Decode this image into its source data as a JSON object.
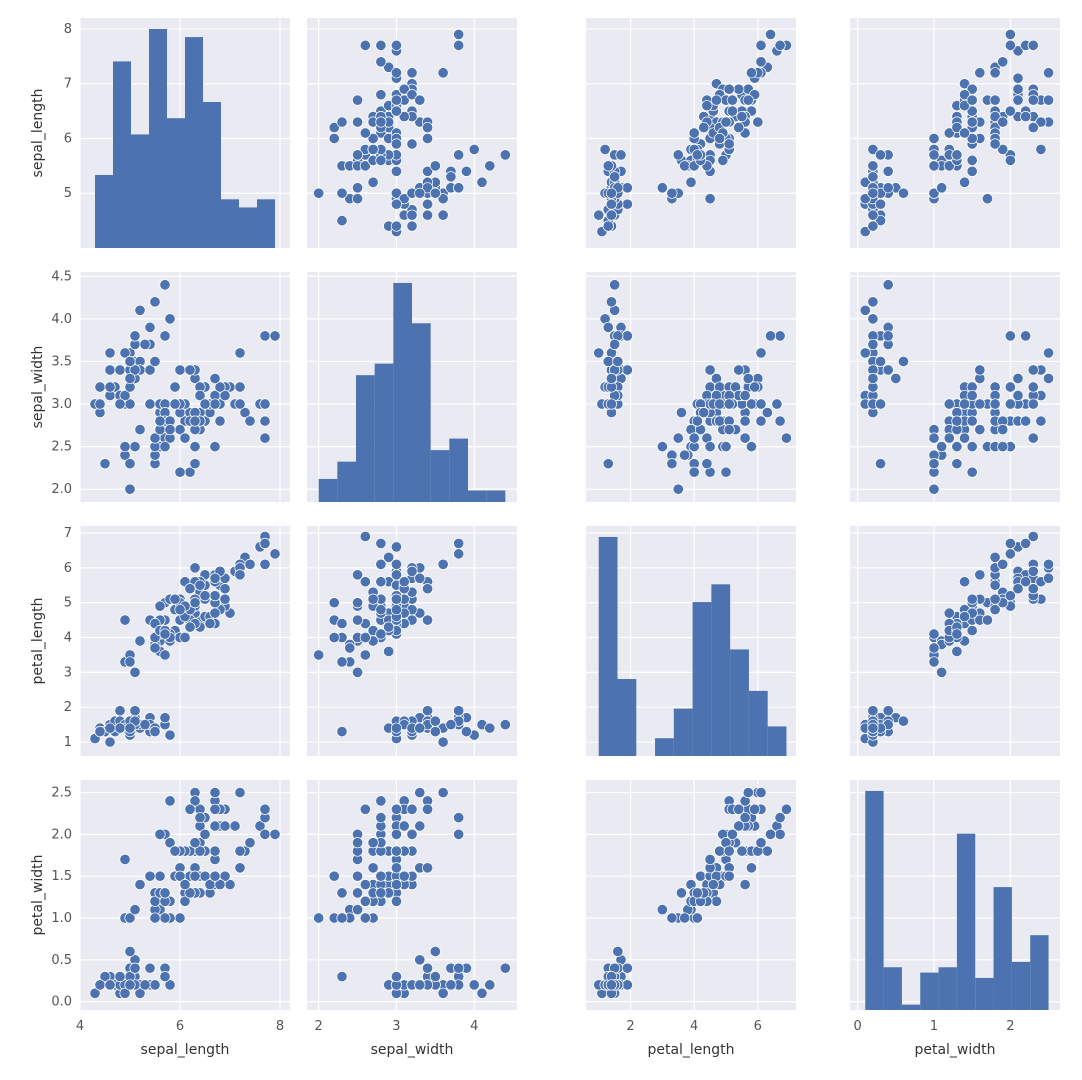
{
  "chart_data": {
    "type": "scatter",
    "kind": "pairplot",
    "variables": [
      "sepal_length",
      "sepal_width",
      "petal_length",
      "petal_width"
    ],
    "color": "#4C72B0",
    "background": "#EAEAF2",
    "grid": true,
    "legend": "none",
    "axes": {
      "sepal_length": {
        "range": [
          4.0,
          8.2
        ],
        "ticks": [
          4,
          6,
          8
        ],
        "ticks_row": [
          5,
          6,
          7,
          8
        ]
      },
      "sepal_width": {
        "range": [
          1.85,
          4.55
        ],
        "ticks": [
          2,
          3,
          4
        ],
        "ticks_row": [
          "2.0",
          "2.5",
          "3.0",
          "3.5",
          "4.0",
          "4.5"
        ]
      },
      "petal_length": {
        "range": [
          0.6,
          7.2
        ],
        "ticks": [
          2,
          4,
          6
        ],
        "ticks_row": [
          1,
          2,
          3,
          4,
          5,
          6,
          7
        ]
      },
      "petal_width": {
        "range": [
          -0.1,
          2.65
        ],
        "ticks": [
          0,
          1,
          2
        ],
        "ticks_row": [
          "0.0",
          "0.5",
          "1.0",
          "1.5",
          "2.0",
          "2.5"
        ]
      }
    },
    "histograms": {
      "sepal_length": {
        "edges": [
          4.3,
          4.66,
          5.02,
          5.38,
          5.74,
          6.1,
          6.46,
          6.82,
          7.18,
          7.54,
          7.9
        ],
        "counts": [
          9,
          23,
          14,
          27,
          16,
          26,
          18,
          6,
          5,
          6
        ]
      },
      "sepal_width": {
        "edges": [
          2.0,
          2.24,
          2.48,
          2.72,
          2.96,
          3.2,
          3.44,
          3.68,
          3.92,
          4.16,
          4.4
        ],
        "counts": [
          4,
          7,
          22,
          24,
          38,
          31,
          9,
          11,
          2,
          2
        ]
      },
      "petal_length": {
        "edges": [
          1.0,
          1.59,
          2.18,
          2.77,
          3.36,
          3.95,
          4.54,
          5.13,
          5.72,
          6.31,
          6.9
        ],
        "counts": [
          37,
          13,
          0,
          3,
          8,
          26,
          29,
          18,
          11,
          5
        ]
      },
      "petal_width": {
        "edges": [
          0.1,
          0.34,
          0.58,
          0.82,
          1.06,
          1.3,
          1.54,
          1.78,
          2.02,
          2.26,
          2.5
        ],
        "counts": [
          41,
          8,
          1,
          7,
          8,
          33,
          6,
          23,
          9,
          14
        ]
      }
    },
    "observations": [
      [
        5.1,
        3.5,
        1.4,
        0.2
      ],
      [
        4.9,
        3.0,
        1.4,
        0.2
      ],
      [
        4.7,
        3.2,
        1.3,
        0.2
      ],
      [
        4.6,
        3.1,
        1.5,
        0.2
      ],
      [
        5.0,
        3.6,
        1.4,
        0.2
      ],
      [
        5.4,
        3.9,
        1.7,
        0.4
      ],
      [
        4.6,
        3.4,
        1.4,
        0.3
      ],
      [
        5.0,
        3.4,
        1.5,
        0.2
      ],
      [
        4.4,
        2.9,
        1.4,
        0.2
      ],
      [
        4.9,
        3.1,
        1.5,
        0.1
      ],
      [
        5.4,
        3.7,
        1.5,
        0.2
      ],
      [
        4.8,
        3.4,
        1.6,
        0.2
      ],
      [
        4.8,
        3.0,
        1.4,
        0.1
      ],
      [
        4.3,
        3.0,
        1.1,
        0.1
      ],
      [
        5.8,
        4.0,
        1.2,
        0.2
      ],
      [
        5.7,
        4.4,
        1.5,
        0.4
      ],
      [
        5.4,
        3.9,
        1.3,
        0.4
      ],
      [
        5.1,
        3.5,
        1.4,
        0.3
      ],
      [
        5.7,
        3.8,
        1.7,
        0.3
      ],
      [
        5.1,
        3.8,
        1.5,
        0.3
      ],
      [
        5.4,
        3.4,
        1.7,
        0.2
      ],
      [
        5.1,
        3.7,
        1.5,
        0.4
      ],
      [
        4.6,
        3.6,
        1.0,
        0.2
      ],
      [
        5.1,
        3.3,
        1.7,
        0.5
      ],
      [
        4.8,
        3.4,
        1.9,
        0.2
      ],
      [
        5.0,
        3.0,
        1.6,
        0.2
      ],
      [
        5.0,
        3.4,
        1.6,
        0.4
      ],
      [
        5.2,
        3.5,
        1.5,
        0.2
      ],
      [
        5.2,
        3.4,
        1.4,
        0.2
      ],
      [
        4.7,
        3.2,
        1.6,
        0.2
      ],
      [
        4.8,
        3.1,
        1.6,
        0.2
      ],
      [
        5.4,
        3.4,
        1.5,
        0.4
      ],
      [
        5.2,
        4.1,
        1.5,
        0.1
      ],
      [
        5.5,
        4.2,
        1.4,
        0.2
      ],
      [
        4.9,
        3.1,
        1.5,
        0.2
      ],
      [
        5.0,
        3.2,
        1.2,
        0.2
      ],
      [
        5.5,
        3.5,
        1.3,
        0.2
      ],
      [
        4.9,
        3.6,
        1.4,
        0.1
      ],
      [
        4.4,
        3.0,
        1.3,
        0.2
      ],
      [
        5.1,
        3.4,
        1.5,
        0.2
      ],
      [
        5.0,
        3.5,
        1.3,
        0.3
      ],
      [
        4.5,
        2.3,
        1.3,
        0.3
      ],
      [
        4.4,
        3.2,
        1.3,
        0.2
      ],
      [
        5.0,
        3.5,
        1.6,
        0.6
      ],
      [
        5.1,
        3.8,
        1.9,
        0.4
      ],
      [
        4.8,
        3.0,
        1.4,
        0.3
      ],
      [
        5.1,
        3.8,
        1.6,
        0.2
      ],
      [
        4.6,
        3.2,
        1.4,
        0.2
      ],
      [
        5.3,
        3.7,
        1.5,
        0.2
      ],
      [
        5.0,
        3.3,
        1.4,
        0.2
      ],
      [
        7.0,
        3.2,
        4.7,
        1.4
      ],
      [
        6.4,
        3.2,
        4.5,
        1.5
      ],
      [
        6.9,
        3.1,
        4.9,
        1.5
      ],
      [
        5.5,
        2.3,
        4.0,
        1.3
      ],
      [
        6.5,
        2.8,
        4.6,
        1.5
      ],
      [
        5.7,
        2.8,
        4.5,
        1.3
      ],
      [
        6.3,
        3.3,
        4.7,
        1.6
      ],
      [
        4.9,
        2.4,
        3.3,
        1.0
      ],
      [
        6.6,
        2.9,
        4.6,
        1.3
      ],
      [
        5.2,
        2.7,
        3.9,
        1.4
      ],
      [
        5.0,
        2.0,
        3.5,
        1.0
      ],
      [
        5.9,
        3.0,
        4.2,
        1.5
      ],
      [
        6.0,
        2.2,
        4.0,
        1.0
      ],
      [
        6.1,
        2.9,
        4.7,
        1.4
      ],
      [
        5.6,
        2.9,
        3.6,
        1.3
      ],
      [
        6.7,
        3.1,
        4.4,
        1.4
      ],
      [
        5.6,
        3.0,
        4.5,
        1.5
      ],
      [
        5.8,
        2.7,
        4.1,
        1.0
      ],
      [
        6.2,
        2.2,
        4.5,
        1.5
      ],
      [
        5.6,
        2.5,
        3.9,
        1.1
      ],
      [
        5.9,
        3.2,
        4.8,
        1.8
      ],
      [
        6.1,
        2.8,
        4.0,
        1.3
      ],
      [
        6.3,
        2.5,
        4.9,
        1.5
      ],
      [
        6.1,
        2.8,
        4.7,
        1.2
      ],
      [
        6.4,
        2.9,
        4.3,
        1.3
      ],
      [
        6.6,
        3.0,
        4.4,
        1.4
      ],
      [
        6.8,
        2.8,
        4.8,
        1.4
      ],
      [
        6.7,
        3.0,
        5.0,
        1.7
      ],
      [
        6.0,
        2.9,
        4.5,
        1.5
      ],
      [
        5.7,
        2.6,
        3.5,
        1.0
      ],
      [
        5.5,
        2.4,
        3.8,
        1.1
      ],
      [
        5.5,
        2.4,
        3.7,
        1.0
      ],
      [
        5.8,
        2.7,
        3.9,
        1.2
      ],
      [
        6.0,
        2.7,
        5.1,
        1.6
      ],
      [
        5.4,
        3.0,
        4.5,
        1.5
      ],
      [
        6.0,
        3.4,
        4.5,
        1.6
      ],
      [
        6.7,
        3.1,
        4.7,
        1.5
      ],
      [
        6.3,
        2.3,
        4.4,
        1.3
      ],
      [
        5.6,
        3.0,
        4.1,
        1.3
      ],
      [
        5.5,
        2.5,
        4.0,
        1.3
      ],
      [
        5.5,
        2.6,
        4.4,
        1.2
      ],
      [
        6.1,
        3.0,
        4.6,
        1.4
      ],
      [
        5.8,
        2.6,
        4.0,
        1.2
      ],
      [
        5.0,
        2.3,
        3.3,
        1.0
      ],
      [
        5.6,
        2.7,
        4.2,
        1.3
      ],
      [
        5.7,
        3.0,
        4.2,
        1.2
      ],
      [
        5.7,
        2.9,
        4.2,
        1.3
      ],
      [
        6.2,
        2.9,
        4.3,
        1.3
      ],
      [
        5.1,
        2.5,
        3.0,
        1.1
      ],
      [
        5.7,
        2.8,
        4.1,
        1.3
      ],
      [
        6.3,
        3.3,
        6.0,
        2.5
      ],
      [
        5.8,
        2.7,
        5.1,
        1.9
      ],
      [
        7.1,
        3.0,
        5.9,
        2.1
      ],
      [
        6.3,
        2.9,
        5.6,
        1.8
      ],
      [
        6.5,
        3.0,
        5.8,
        2.2
      ],
      [
        7.6,
        3.0,
        6.6,
        2.1
      ],
      [
        4.9,
        2.5,
        4.5,
        1.7
      ],
      [
        7.3,
        2.9,
        6.3,
        1.8
      ],
      [
        6.7,
        2.5,
        5.8,
        1.8
      ],
      [
        7.2,
        3.6,
        6.1,
        2.5
      ],
      [
        6.5,
        3.2,
        5.1,
        2.0
      ],
      [
        6.4,
        2.7,
        5.3,
        1.9
      ],
      [
        6.8,
        3.0,
        5.5,
        2.1
      ],
      [
        5.7,
        2.5,
        5.0,
        2.0
      ],
      [
        5.8,
        2.8,
        5.1,
        2.4
      ],
      [
        6.4,
        3.2,
        5.3,
        2.3
      ],
      [
        6.5,
        3.0,
        5.5,
        1.8
      ],
      [
        7.7,
        3.8,
        6.7,
        2.2
      ],
      [
        7.7,
        2.6,
        6.9,
        2.3
      ],
      [
        6.0,
        2.2,
        5.0,
        1.5
      ],
      [
        6.9,
        3.2,
        5.7,
        2.3
      ],
      [
        5.6,
        2.8,
        4.9,
        2.0
      ],
      [
        7.7,
        2.8,
        6.7,
        2.0
      ],
      [
        6.3,
        2.7,
        4.9,
        1.8
      ],
      [
        6.7,
        3.3,
        5.7,
        2.1
      ],
      [
        7.2,
        3.2,
        6.0,
        1.8
      ],
      [
        6.2,
        2.8,
        4.8,
        1.8
      ],
      [
        6.1,
        3.0,
        4.9,
        1.8
      ],
      [
        6.4,
        2.8,
        5.6,
        2.1
      ],
      [
        7.2,
        3.0,
        5.8,
        1.6
      ],
      [
        7.4,
        2.8,
        6.1,
        1.9
      ],
      [
        7.9,
        3.8,
        6.4,
        2.0
      ],
      [
        6.4,
        2.8,
        5.6,
        2.2
      ],
      [
        6.3,
        2.8,
        5.1,
        1.5
      ],
      [
        6.1,
        2.6,
        5.6,
        1.4
      ],
      [
        7.7,
        3.0,
        6.1,
        2.3
      ],
      [
        6.3,
        3.4,
        5.6,
        2.4
      ],
      [
        6.4,
        3.1,
        5.5,
        1.8
      ],
      [
        6.0,
        3.0,
        4.8,
        1.8
      ],
      [
        6.9,
        3.1,
        5.4,
        2.1
      ],
      [
        6.7,
        3.1,
        5.6,
        2.4
      ],
      [
        6.9,
        3.1,
        5.1,
        2.3
      ],
      [
        5.8,
        2.7,
        5.1,
        1.9
      ],
      [
        6.8,
        3.2,
        5.9,
        2.3
      ],
      [
        6.7,
        3.3,
        5.7,
        2.5
      ],
      [
        6.7,
        3.0,
        5.2,
        2.3
      ],
      [
        6.3,
        2.5,
        5.0,
        1.9
      ],
      [
        6.5,
        3.0,
        5.2,
        2.0
      ],
      [
        6.2,
        3.4,
        5.4,
        2.3
      ],
      [
        5.9,
        3.0,
        5.1,
        1.8
      ]
    ]
  }
}
